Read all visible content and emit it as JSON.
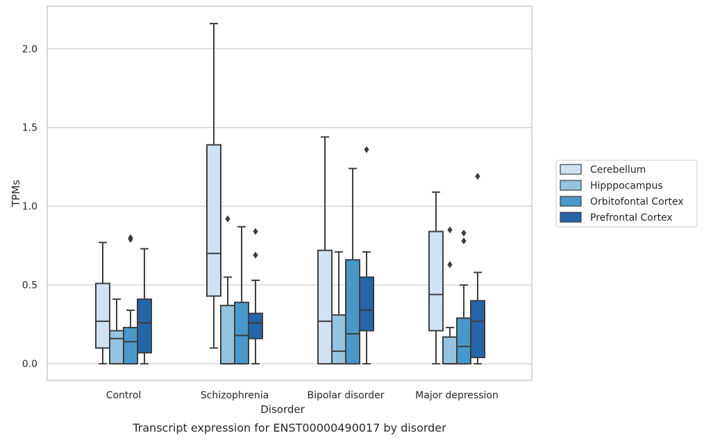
{
  "chart_data": {
    "type": "box",
    "caption": "Transcript expression for ENST00000490017 by disorder",
    "xlabel": "Disorder",
    "ylabel": "TPMs",
    "ylim": [
      -0.105,
      2.27
    ],
    "yticks": [
      "0.0",
      "0.5",
      "1.0",
      "1.5",
      "2.0"
    ],
    "ytick_values": [
      0.0,
      0.5,
      1.0,
      1.5,
      2.0
    ],
    "grid": "horizontal",
    "legend_position": "right",
    "categories": [
      "Control",
      "Schizophrenia",
      "Bipolar disorder",
      "Major depression"
    ],
    "series": [
      {
        "name": "Cerebellum",
        "color": "#d0e1f2",
        "boxes": [
          {
            "whislo": 0.0,
            "q1": 0.1,
            "med": 0.27,
            "q3": 0.51,
            "whishi": 0.77,
            "fliers": []
          },
          {
            "whislo": 0.1,
            "q1": 0.43,
            "med": 0.7,
            "q3": 1.39,
            "whishi": 2.16,
            "fliers": []
          },
          {
            "whislo": 0.0,
            "q1": 0.0,
            "med": 0.27,
            "q3": 0.72,
            "whishi": 1.44,
            "fliers": []
          },
          {
            "whislo": 0.0,
            "q1": 0.21,
            "med": 0.44,
            "q3": 0.84,
            "whishi": 1.09,
            "fliers": []
          }
        ]
      },
      {
        "name": "Hipppocampus",
        "color": "#94c4df",
        "boxes": [
          {
            "whislo": 0.0,
            "q1": 0.0,
            "med": 0.16,
            "q3": 0.21,
            "whishi": 0.41,
            "fliers": []
          },
          {
            "whislo": 0.0,
            "q1": 0.0,
            "med": 0.0,
            "q3": 0.37,
            "whishi": 0.55,
            "fliers": [
              0.92
            ]
          },
          {
            "whislo": 0.0,
            "q1": 0.0,
            "med": 0.08,
            "q3": 0.31,
            "whishi": 0.71,
            "fliers": []
          },
          {
            "whislo": 0.0,
            "q1": 0.0,
            "med": 0.0,
            "q3": 0.17,
            "whishi": 0.23,
            "fliers": [
              0.63,
              0.85
            ]
          }
        ]
      },
      {
        "name": "Orbitofontal Cortex",
        "color": "#4a98c9",
        "boxes": [
          {
            "whislo": 0.0,
            "q1": 0.0,
            "med": 0.14,
            "q3": 0.23,
            "whishi": 0.34,
            "fliers": [
              0.79,
              0.8
            ]
          },
          {
            "whislo": 0.0,
            "q1": 0.0,
            "med": 0.18,
            "q3": 0.39,
            "whishi": 0.87,
            "fliers": []
          },
          {
            "whislo": 0.0,
            "q1": 0.0,
            "med": 0.19,
            "q3": 0.66,
            "whishi": 1.24,
            "fliers": []
          },
          {
            "whislo": 0.0,
            "q1": 0.0,
            "med": 0.11,
            "q3": 0.29,
            "whishi": 0.5,
            "fliers": [
              0.78,
              0.83
            ]
          }
        ]
      },
      {
        "name": "Prefrontal Cortex",
        "color": "#2565a8",
        "boxes": [
          {
            "whislo": 0.0,
            "q1": 0.07,
            "med": 0.26,
            "q3": 0.41,
            "whishi": 0.73,
            "fliers": []
          },
          {
            "whislo": 0.0,
            "q1": 0.16,
            "med": 0.26,
            "q3": 0.32,
            "whishi": 0.53,
            "fliers": [
              0.69,
              0.84
            ]
          },
          {
            "whislo": 0.0,
            "q1": 0.21,
            "med": 0.34,
            "q3": 0.55,
            "whishi": 0.71,
            "fliers": [
              1.36
            ]
          },
          {
            "whislo": 0.0,
            "q1": 0.04,
            "med": 0.27,
            "q3": 0.4,
            "whishi": 0.58,
            "fliers": [
              1.19
            ]
          }
        ]
      }
    ]
  }
}
